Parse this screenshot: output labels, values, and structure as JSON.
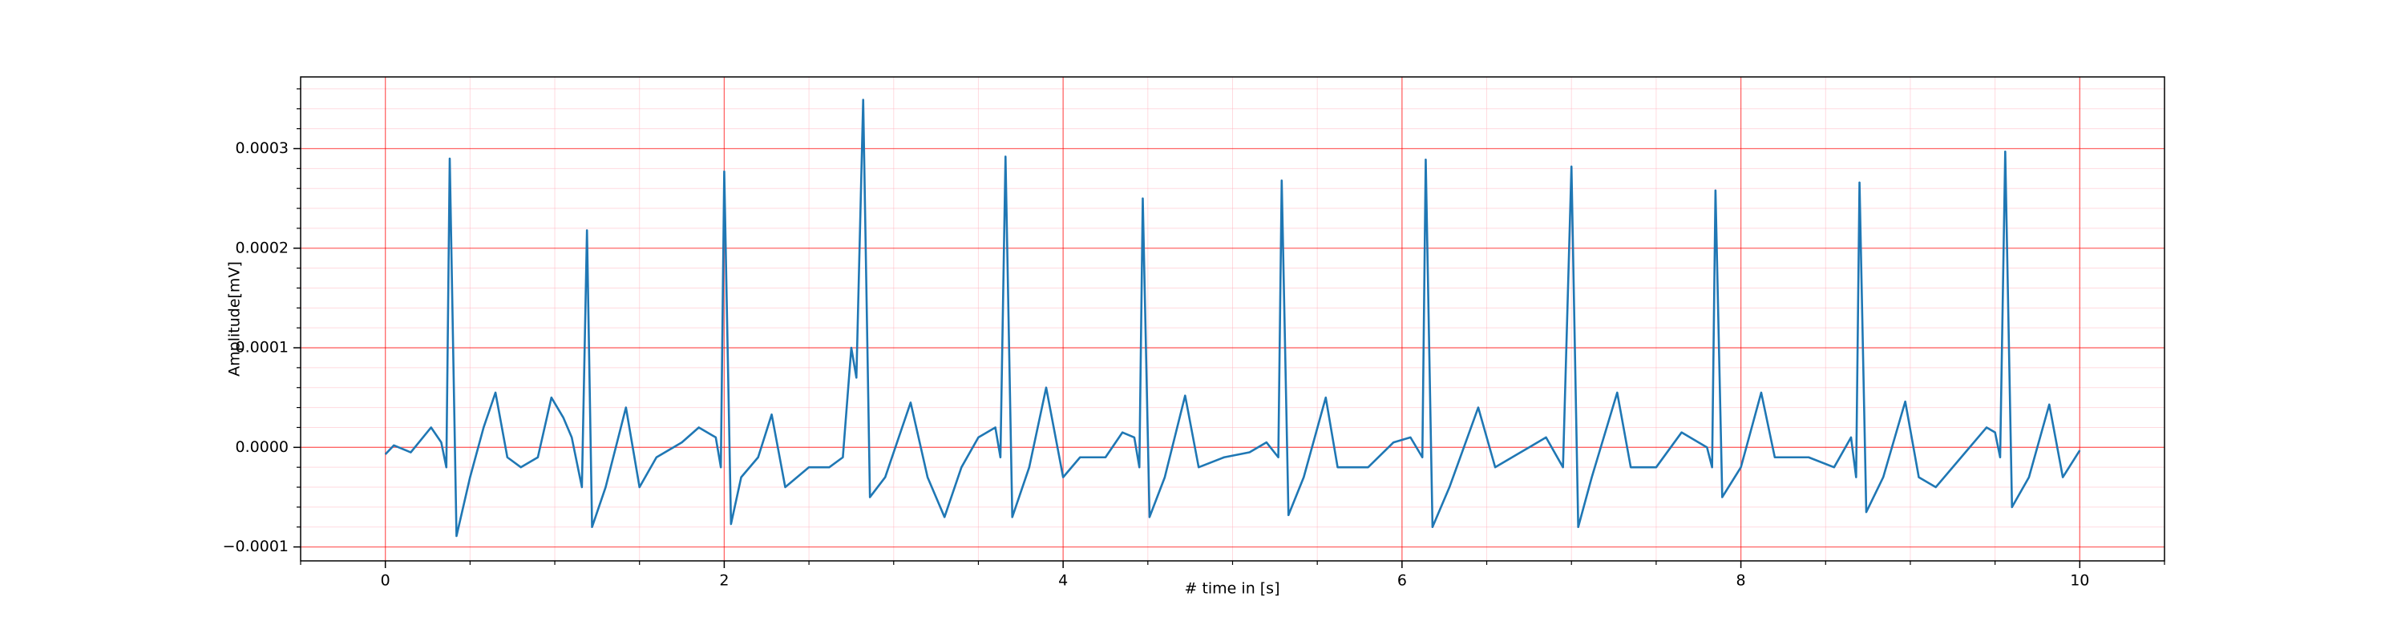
{
  "chart_data": {
    "type": "line",
    "xlabel": "# time in [s]",
    "ylabel": "Amplitude[mV]",
    "x": [
      0,
      0.05,
      0.15,
      0.27,
      0.33,
      0.36,
      0.38,
      0.42,
      0.5,
      0.58,
      0.65,
      0.72,
      0.8,
      0.9,
      0.98,
      1.05,
      1.1,
      1.16,
      1.19,
      1.22,
      1.3,
      1.42,
      1.5,
      1.6,
      1.75,
      1.85,
      1.95,
      1.98,
      2.0,
      2.04,
      2.1,
      2.2,
      2.28,
      2.36,
      2.5,
      2.62,
      2.7,
      2.75,
      2.78,
      2.82,
      2.86,
      2.95,
      3.1,
      3.2,
      3.3,
      3.4,
      3.5,
      3.6,
      3.63,
      3.66,
      3.7,
      3.8,
      3.9,
      4.0,
      4.1,
      4.25,
      4.35,
      4.42,
      4.45,
      4.47,
      4.51,
      4.6,
      4.72,
      4.8,
      4.95,
      5.1,
      5.2,
      5.27,
      5.29,
      5.33,
      5.42,
      5.55,
      5.62,
      5.8,
      5.95,
      6.05,
      6.12,
      6.14,
      6.18,
      6.28,
      6.45,
      6.55,
      6.7,
      6.85,
      6.95,
      7.0,
      7.04,
      7.12,
      7.27,
      7.35,
      7.5,
      7.65,
      7.8,
      7.83,
      7.85,
      7.89,
      8.0,
      8.12,
      8.2,
      8.4,
      8.55,
      8.65,
      8.68,
      8.7,
      8.74,
      8.84,
      8.97,
      9.05,
      9.15,
      9.3,
      9.45,
      9.5,
      9.53,
      9.56,
      9.6,
      9.7,
      9.82,
      9.9,
      10.0
    ],
    "series": [
      {
        "color": "#1f77b4",
        "values": [
          -7e-06,
          2e-06,
          -5e-06,
          2e-05,
          5e-06,
          -2e-05,
          0.00029,
          -8.9e-05,
          -3e-05,
          2e-05,
          5.5e-05,
          -1e-05,
          -2e-05,
          -1e-05,
          5e-05,
          3e-05,
          1e-05,
          -4e-05,
          0.000218,
          -8e-05,
          -4e-05,
          4e-05,
          -4e-05,
          -1e-05,
          5e-06,
          2e-05,
          1e-05,
          -2e-05,
          0.000277,
          -7.7e-05,
          -3e-05,
          -1e-05,
          3.3e-05,
          -4e-05,
          -2e-05,
          -2e-05,
          -1e-05,
          0.0001,
          7e-05,
          0.000349,
          -5e-05,
          -3e-05,
          4.5e-05,
          -3e-05,
          -7e-05,
          -2e-05,
          1e-05,
          2e-05,
          -1e-05,
          0.000292,
          -7e-05,
          -2e-05,
          6e-05,
          -3e-05,
          -1e-05,
          -1e-05,
          1.5e-05,
          1e-05,
          -2e-05,
          0.00025,
          -7e-05,
          -3e-05,
          5.2e-05,
          -2e-05,
          -1e-05,
          -5e-06,
          5e-06,
          -1e-05,
          0.000268,
          -6.8e-05,
          -3e-05,
          5e-05,
          -2e-05,
          -2e-05,
          5e-06,
          1e-05,
          -1e-05,
          0.000289,
          -8e-05,
          -4e-05,
          4e-05,
          -2e-05,
          -5e-06,
          1e-05,
          -2e-05,
          0.000282,
          -8e-05,
          -3e-05,
          5.5e-05,
          -2e-05,
          -2e-05,
          1.5e-05,
          0.0,
          -2e-05,
          0.000258,
          -5e-05,
          -2e-05,
          5.5e-05,
          -1e-05,
          -1e-05,
          -2e-05,
          1e-05,
          -3e-05,
          0.000266,
          -6.5e-05,
          -3e-05,
          4.6e-05,
          -3e-05,
          -4e-05,
          -1e-05,
          2e-05,
          1.5e-05,
          -1e-05,
          0.000297,
          -6e-05,
          -3e-05,
          4.3e-05,
          -3e-05,
          -3e-06
        ]
      }
    ],
    "xlim": [
      -0.5,
      10.5
    ],
    "ylim": [
      -0.000114,
      0.000372
    ],
    "xticks": [
      0,
      2,
      4,
      6,
      8,
      10
    ],
    "yticks": [
      {
        "value": -0.0001,
        "label": "−0.0001"
      },
      {
        "value": 0,
        "label": "0.0000"
      },
      {
        "value": 0.0001,
        "label": "0.0001"
      },
      {
        "value": 0.0002,
        "label": "0.0002"
      },
      {
        "value": 0.0003,
        "label": "0.0003"
      }
    ],
    "xminorticks": [
      -0.5,
      0.5,
      1,
      1.5,
      2.5,
      3,
      3.5,
      4.5,
      5,
      5.5,
      6.5,
      7,
      7.5,
      8.5,
      9,
      9.5,
      10.5
    ],
    "yminorticks": [
      -8e-05,
      -6e-05,
      -4e-05,
      -2e-05,
      2e-05,
      4e-05,
      6e-05,
      8e-05,
      0.00012,
      0.00014,
      0.00016,
      0.00018,
      0.00022,
      0.00024,
      0.00026,
      0.00028,
      0.00032,
      0.00034,
      0.00036
    ],
    "grid": true,
    "grid_color": "#ff0000",
    "minor_grid_color": "#ffb6c1"
  }
}
